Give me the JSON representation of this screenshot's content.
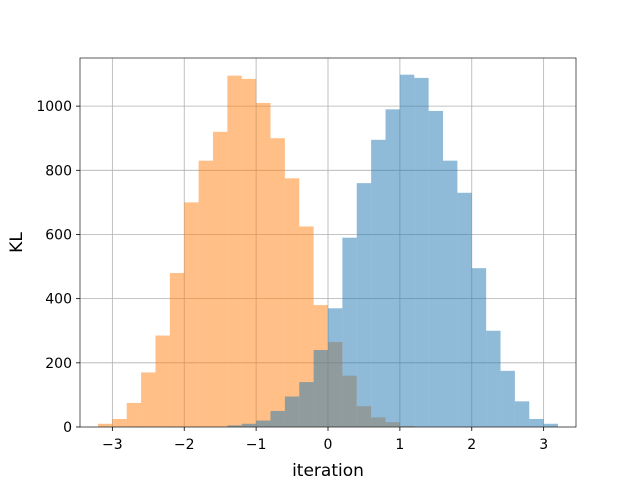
{
  "chart_data": {
    "type": "bar",
    "xlabel": "iteration",
    "ylabel": "KL",
    "xlim": [
      -3.45,
      3.45
    ],
    "ylim": [
      0,
      1150
    ],
    "xticks": [
      -3,
      -2,
      -1,
      0,
      1,
      2,
      3
    ],
    "xtick_labels": [
      "−3",
      "−2",
      "−1",
      "0",
      "1",
      "2",
      "3"
    ],
    "yticks": [
      0,
      200,
      400,
      600,
      800,
      1000
    ],
    "ytick_labels": [
      "0",
      "200",
      "400",
      "600",
      "800",
      "1000"
    ],
    "grid": true,
    "bin_width": 0.2,
    "series": [
      {
        "color": "#ff7f0e",
        "opacity": 0.5,
        "x": [
          -3.1,
          -2.9,
          -2.7,
          -2.5,
          -2.3,
          -2.1,
          -1.9,
          -1.7,
          -1.5,
          -1.3,
          -1.1,
          -0.9,
          -0.7,
          -0.5,
          -0.3,
          -0.1,
          0.1,
          0.3,
          0.5,
          0.7,
          0.9,
          1.1
        ],
        "values": [
          10,
          25,
          75,
          170,
          285,
          480,
          700,
          830,
          920,
          1095,
          1085,
          1010,
          900,
          775,
          625,
          380,
          265,
          160,
          65,
          30,
          15,
          3
        ]
      },
      {
        "color": "#1f77b4",
        "opacity": 0.5,
        "x": [
          -1.3,
          -1.1,
          -0.9,
          -0.7,
          -0.5,
          -0.3,
          -0.1,
          0.1,
          0.3,
          0.5,
          0.7,
          0.9,
          1.1,
          1.3,
          1.5,
          1.7,
          1.9,
          2.1,
          2.3,
          2.5,
          2.7,
          2.9,
          3.1
        ],
        "values": [
          5,
          10,
          20,
          50,
          95,
          140,
          240,
          370,
          590,
          760,
          895,
          990,
          1098,
          1088,
          985,
          830,
          730,
          495,
          300,
          175,
          80,
          25,
          10
        ]
      }
    ]
  }
}
